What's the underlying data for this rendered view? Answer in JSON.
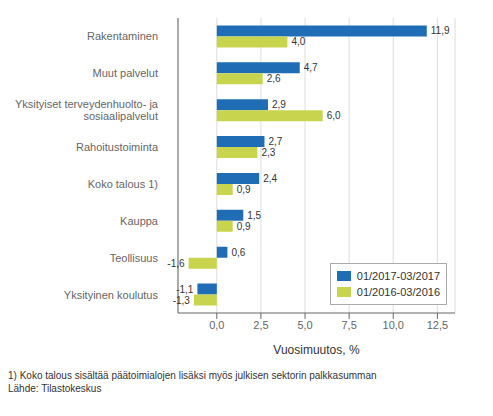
{
  "chart_data": {
    "type": "bar",
    "orientation": "horizontal",
    "categories": [
      "Rakentaminen",
      "Muut palvelut",
      "Yksityiset terveydenhuolto- ja\nsosiaalipalvelut",
      "Rahoitustoiminta",
      "Koko talous 1)",
      "Kauppa",
      "Teollisuus",
      "Yksityinen koulutus"
    ],
    "series": [
      {
        "name": "01/2017-03/2017",
        "color": "#1F6EB5",
        "values": [
          11.9,
          4.7,
          2.9,
          2.7,
          2.4,
          1.5,
          0.6,
          -1.1
        ],
        "value_labels": [
          "11,9",
          "4,7",
          "2,9",
          "2,7",
          "2,4",
          "1,5",
          "0,6",
          "-1,1"
        ]
      },
      {
        "name": "01/2016-03/2016",
        "color": "#C8D44E",
        "values": [
          4.0,
          2.6,
          6.0,
          2.3,
          0.9,
          0.9,
          -1.6,
          -1.3
        ],
        "value_labels": [
          "4,0",
          "2,6",
          "6,0",
          "2,3",
          "0,9",
          "0,9",
          "-1,6",
          "-1,3"
        ]
      }
    ],
    "xlabel": "Vuosimuutos, %",
    "xlim": [
      -2.2,
      13.5
    ],
    "xticks": [
      {
        "value": 0.0,
        "label": "0,0"
      },
      {
        "value": 2.5,
        "label": "2,5"
      },
      {
        "value": 5.0,
        "label": "5,0"
      },
      {
        "value": 7.5,
        "label": "7,5"
      },
      {
        "value": 10.0,
        "label": "10,0"
      },
      {
        "value": 12.5,
        "label": "12,5"
      }
    ],
    "grid": true,
    "legend": "lower right",
    "data_labels": true,
    "annotations": [
      "1) Koko talous sisältää päätoimialojen lisäksi myös julkisen sektorin palkkasumman",
      "Lähde: Tilastokeskus"
    ]
  }
}
